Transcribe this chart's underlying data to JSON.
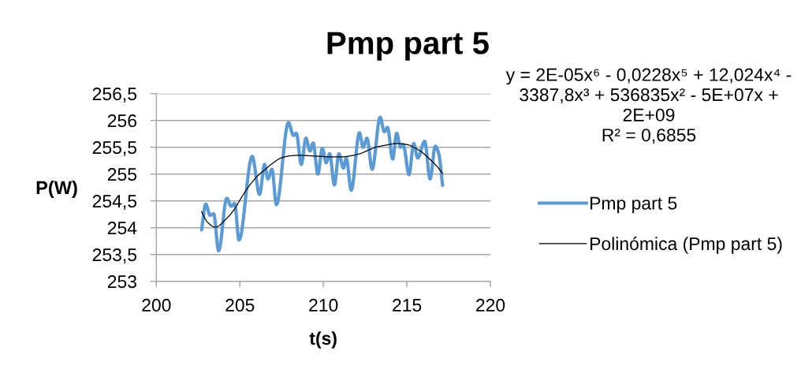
{
  "chart_data": {
    "type": "line",
    "title": "Pmp part 5",
    "xlabel": "t(s)",
    "ylabel": "P(W)",
    "annotations": [
      "y = 2E-05x⁶ - 0,0228x⁵ + 12,024x⁴ -\n3387,8x³ + 536835x² - 5E+07x +\n2E+09",
      "R² = 0,6855"
    ],
    "series": [
      {
        "name": "Pmp part 5",
        "color": "#5b9bd5",
        "x": [
          202.71,
          202.96,
          203.22,
          203.43,
          203.73,
          204.22,
          204.48,
          204.69,
          204.95,
          205.74,
          206.18,
          206.48,
          206.68,
          206.92,
          207.19,
          207.91,
          208.21,
          208.38,
          208.68,
          208.96,
          209.2,
          209.39,
          209.67,
          209.94,
          210.17,
          210.38,
          210.66,
          210.93,
          211.2,
          211.37,
          211.67,
          212.16,
          212.38,
          212.61,
          212.92,
          213.4,
          213.65,
          213.84,
          214.15,
          214.39,
          214.62,
          214.78,
          215.13,
          215.41,
          215.65,
          216.07,
          216.39,
          216.7,
          216.91,
          217.14
        ],
        "values": [
          253.96,
          254.44,
          254.23,
          254.26,
          253.57,
          254.55,
          254.4,
          254.45,
          253.77,
          255.33,
          254.62,
          255.18,
          254.91,
          255.09,
          254.43,
          255.96,
          255.72,
          255.76,
          255.18,
          255.67,
          255.43,
          255.58,
          255.0,
          255.48,
          255.21,
          255.38,
          254.8,
          255.38,
          255.11,
          255.3,
          254.7,
          255.77,
          255.5,
          255.67,
          255.09,
          256.06,
          255.79,
          255.87,
          255.28,
          255.76,
          255.5,
          255.55,
          254.99,
          255.57,
          255.3,
          255.61,
          254.91,
          255.52,
          255.38,
          254.79
        ]
      },
      {
        "name": "Polinómica (Pmp part 5)",
        "color": "#000000",
        "x": [
          202.71,
          203.07,
          203.54,
          204.17,
          204.64,
          205.11,
          205.58,
          206.05,
          206.53,
          207.0,
          207.47,
          208.02,
          208.57,
          209.2,
          209.83,
          210.45,
          211.08,
          211.63,
          212.19,
          212.66,
          213.13,
          213.76,
          214.39,
          215.02,
          215.41,
          215.8,
          216.2,
          216.59,
          216.87,
          217.14
        ],
        "values": [
          254.3,
          254.1,
          254.01,
          254.16,
          254.33,
          254.57,
          254.79,
          254.96,
          255.09,
          255.21,
          255.3,
          255.34,
          255.35,
          255.34,
          255.33,
          255.32,
          255.32,
          255.34,
          255.38,
          255.44,
          255.5,
          255.54,
          255.57,
          255.55,
          255.5,
          255.43,
          255.33,
          255.21,
          255.12,
          255.01
        ]
      }
    ],
    "xlim": [
      200,
      220
    ],
    "xticks": [
      200,
      205,
      210,
      215,
      220
    ],
    "ylim": [
      253,
      256.5
    ],
    "yticks": [
      253,
      {
        "value": 253.5,
        "label": "253,5"
      },
      254,
      {
        "value": 254.5,
        "label": "254,5"
      },
      255,
      {
        "value": 255.5,
        "label": "255,5"
      },
      256,
      {
        "value": 256.5,
        "label": "256,5"
      }
    ],
    "grid": "y",
    "legend": "right"
  }
}
